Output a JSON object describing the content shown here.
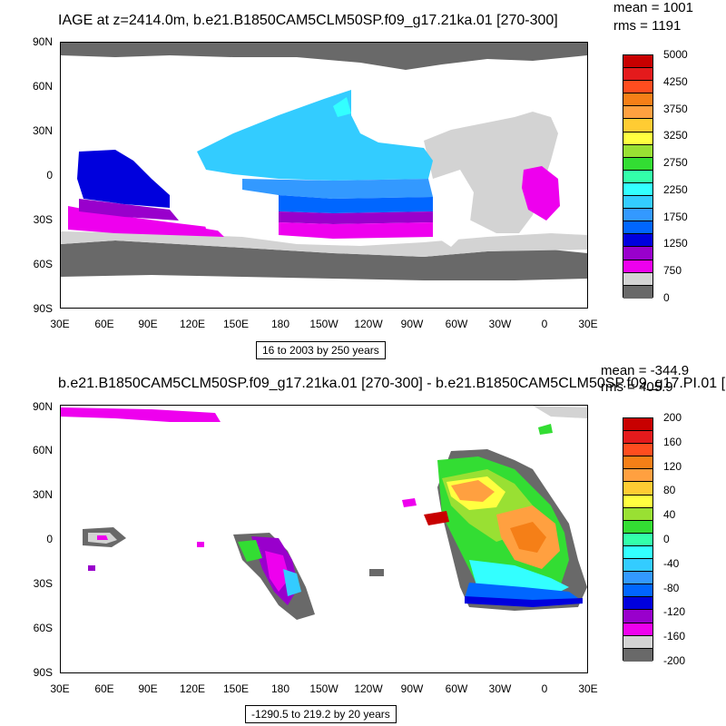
{
  "panel1": {
    "title": "IAGE at z=2414.0m, b.e21.B1850CAM5CLM50SP.f09_g17.21ka.01 [270-300]",
    "mean": "mean = 1001",
    "rms": "rms = 1191",
    "range": "16 to 2003 by 250 years",
    "colorbar": {
      "labels": [
        "5000",
        "4250",
        "3750",
        "3250",
        "2750",
        "2250",
        "1750",
        "1250",
        "750",
        "0"
      ],
      "colors": [
        "#c80000",
        "#e41a1c",
        "#ff4d1f",
        "#f57f17",
        "#ffa040",
        "#ffcc33",
        "#ffff40",
        "#99e033",
        "#33dd33",
        "#33ffaa",
        "#33ffff",
        "#33ccff",
        "#3399ff",
        "#0066ff",
        "#0000dd",
        "#9900cc",
        "#ee00ee",
        "#d3d3d3",
        "#696969"
      ]
    }
  },
  "panel2": {
    "title": "b.e21.B1850CAM5CLM50SP.f09_g17.21ka.01 [270-300] - b.e21.B1850CAM5CLM50SP.f09_g17.PI.01 [",
    "mean": "mean = -344.9",
    "rms": "rms = 405.9",
    "range": "-1290.5 to 219.2 by 20 years",
    "colorbar": {
      "labels": [
        "200",
        "160",
        "120",
        "80",
        "40",
        "0",
        "-40",
        "-80",
        "-120",
        "-160",
        "-200"
      ],
      "colors": [
        "#c80000",
        "#e41a1c",
        "#ff4d1f",
        "#f57f17",
        "#ffa040",
        "#ffcc33",
        "#ffff40",
        "#99e033",
        "#33dd33",
        "#33ffaa",
        "#33ffff",
        "#33ccff",
        "#3399ff",
        "#0066ff",
        "#0000dd",
        "#9900cc",
        "#ee00ee",
        "#d3d3d3",
        "#696969"
      ]
    }
  },
  "axes": {
    "lat_labels": [
      "90N",
      "60N",
      "30N",
      "0",
      "30S",
      "60S",
      "90S"
    ],
    "lon_labels": [
      "30E",
      "60E",
      "90E",
      "120E",
      "150E",
      "180",
      "150W",
      "120W",
      "90W",
      "60W",
      "30W",
      "0",
      "30E"
    ]
  },
  "colors": {
    "land_gray": "#d3d3d3",
    "dark_gray": "#696969"
  }
}
